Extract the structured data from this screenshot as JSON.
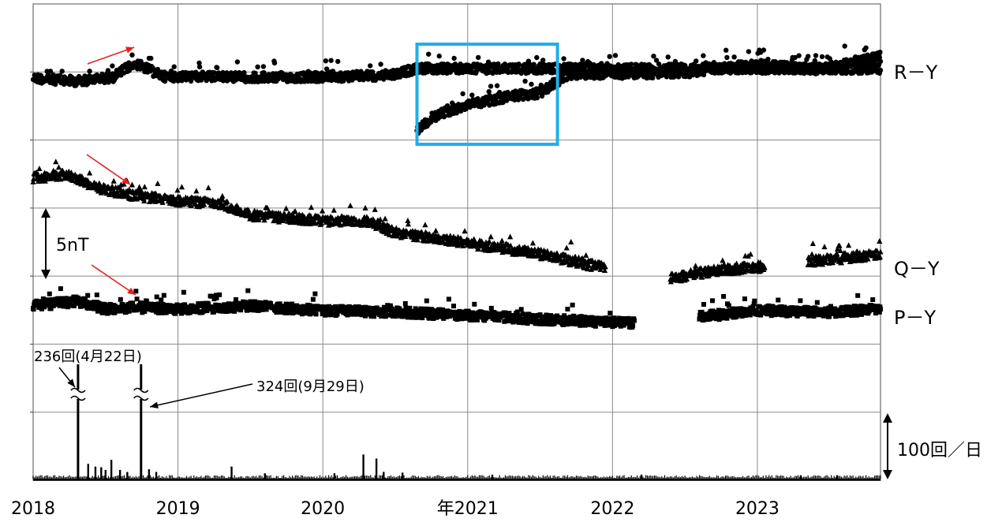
{
  "chart_data": {
    "type": "scatter",
    "x_axis": {
      "range": [
        2018.0,
        2023.85
      ],
      "tick_values": [
        2018,
        2019,
        2020,
        2021,
        2022,
        2023
      ],
      "tick_labels": [
        "2018",
        "2019",
        "2020",
        "年2021",
        "2022",
        "2023"
      ]
    },
    "grid": true,
    "colors": {
      "points": "#000000",
      "arrow": "#e81e1e",
      "highlight_box": "#1fb0e8"
    },
    "series": [
      {
        "name": "R－Y",
        "marker": "circle",
        "segments": [
          {
            "x0": 2018.0,
            "x1": 2023.85,
            "profile": [
              [
                2018.0,
                99
              ],
              [
                2018.3,
                103
              ],
              [
                2018.55,
                98
              ],
              [
                2018.7,
                80
              ],
              [
                2018.9,
                97
              ],
              [
                2019.5,
                98
              ],
              [
                2020.0,
                98
              ],
              [
                2020.5,
                95
              ],
              [
                2020.64,
                87
              ]
            ]
          },
          {
            "x0": 2020.65,
            "x1": 2023.85,
            "profile": [
              [
                2020.65,
                165
              ],
              [
                2020.8,
                145
              ],
              [
                2021.0,
                133
              ],
              [
                2021.3,
                122
              ],
              [
                2021.5,
                118
              ],
              [
                2021.62,
                103
              ],
              [
                2021.7,
                94
              ],
              [
                2022.0,
                94
              ],
              [
                2022.5,
                92
              ],
              [
                2023.0,
                82
              ],
              [
                2023.4,
                88
              ],
              [
                2023.85,
                72
              ]
            ]
          }
        ]
      },
      {
        "name": "Q－Y",
        "marker": "triangle",
        "segments": [
          {
            "x0": 2018.0,
            "x1": 2021.95,
            "profile": [
              [
                2018.0,
                225
              ],
              [
                2018.25,
                222
              ],
              [
                2018.45,
                238
              ],
              [
                2018.7,
                248
              ],
              [
                2019.0,
                255
              ],
              [
                2019.3,
                258
              ],
              [
                2019.5,
                273
              ],
              [
                2020.0,
                280
              ],
              [
                2020.3,
                280
              ],
              [
                2020.5,
                295
              ],
              [
                2021.0,
                308
              ],
              [
                2021.5,
                322
              ],
              [
                2021.95,
                340
              ]
            ]
          },
          {
            "x0": 2022.4,
            "x1": 2023.05,
            "profile": [
              [
                2022.4,
                353
              ],
              [
                2022.7,
                343
              ],
              [
                2023.05,
                338
              ]
            ]
          },
          {
            "x0": 2023.35,
            "x1": 2023.85,
            "profile": [
              [
                2023.35,
                332
              ],
              [
                2023.85,
                322
              ]
            ]
          }
        ]
      },
      {
        "name": "P－Y",
        "marker": "square",
        "segments": [
          {
            "x0": 2018.0,
            "x1": 2022.15,
            "profile": [
              [
                2018.0,
                388
              ],
              [
                2018.3,
                382
              ],
              [
                2018.5,
                392
              ],
              [
                2018.7,
                390
              ],
              [
                2019.0,
                392
              ],
              [
                2019.5,
                388
              ],
              [
                2020.0,
                394
              ],
              [
                2020.5,
                396
              ],
              [
                2021.0,
                400
              ],
              [
                2021.5,
                405
              ],
              [
                2022.15,
                410
              ]
            ]
          },
          {
            "x0": 2022.6,
            "x1": 2023.85,
            "profile": [
              [
                2022.6,
                402
              ],
              [
                2023.0,
                394
              ],
              [
                2023.5,
                396
              ],
              [
                2023.85,
                392
              ]
            ]
          }
        ]
      }
    ],
    "daily_counts": {
      "marker": "bar",
      "events": [
        {
          "x": 2018.31,
          "value": 236,
          "label": "236回(4月22日)",
          "broken": true
        },
        {
          "x": 2018.745,
          "value": 324,
          "label": "324回(9月29日)",
          "broken": true
        }
      ],
      "minor_spikes": [
        [
          2018.38,
          22
        ],
        [
          2018.43,
          18
        ],
        [
          2018.47,
          17
        ],
        [
          2018.5,
          13
        ],
        [
          2018.54,
          28
        ],
        [
          2018.6,
          13
        ],
        [
          2018.65,
          10
        ],
        [
          2018.8,
          14
        ],
        [
          2018.85,
          10
        ],
        [
          2019.37,
          18
        ],
        [
          2019.6,
          8
        ],
        [
          2020.08,
          8
        ],
        [
          2020.28,
          36
        ],
        [
          2020.37,
          30
        ],
        [
          2020.42,
          10
        ],
        [
          2020.55,
          9
        ],
        [
          2021.17,
          6
        ],
        [
          2022.2,
          6
        ],
        [
          2023.3,
          5
        ],
        [
          2023.55,
          5
        ]
      ]
    },
    "annotations": {
      "highlight_box": {
        "x0": 2020.65,
        "x1": 2021.62
      },
      "scale_5nT": "5nT",
      "scale_100": "100回／日"
    }
  }
}
